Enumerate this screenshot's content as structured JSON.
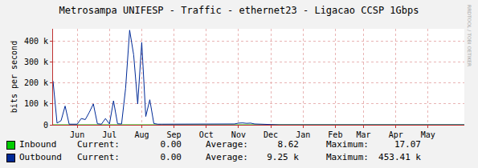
{
  "chart_data": {
    "type": "line",
    "title": "Metrosampa UNIFESP - Traffic - ethernet23 - Ligacao CCSP 1Gbps",
    "y_label": "bits per second",
    "watermark": "RRDTOOL / TOBI OETIKER",
    "categories": [
      null,
      null,
      null,
      null,
      null,
      null,
      "Jun",
      null,
      null,
      null,
      null,
      null,
      null,
      null,
      "Jul",
      null,
      null,
      null,
      null,
      null,
      null,
      null,
      "Aug",
      null,
      null,
      null,
      null,
      null,
      null,
      null,
      "Sep",
      null,
      null,
      null,
      null,
      null,
      null,
      null,
      "Oct",
      null,
      null,
      null,
      null,
      null,
      null,
      null,
      "Nov",
      null,
      null,
      null,
      null,
      null,
      null,
      null,
      "Dec",
      null,
      null,
      null,
      null,
      null,
      null,
      null,
      "Jan",
      null,
      null,
      null,
      null,
      null,
      null,
      null,
      "Feb",
      null,
      null,
      null,
      null,
      null,
      null,
      "Mar",
      null,
      null,
      null,
      null,
      null,
      null,
      null,
      "Apr",
      null,
      null,
      null,
      null,
      null,
      null,
      null,
      "May",
      null,
      null,
      null,
      null,
      null,
      null,
      null,
      null,
      null
    ],
    "series": [
      {
        "name": "Inbound",
        "type": "area",
        "color": "#00cc00",
        "stats": [
          {
            "label": "Current:",
            "text": "0.00"
          },
          {
            "label": "Average:",
            "text": "8.62"
          },
          {
            "label": "Maximum:",
            "text": "17.07"
          }
        ],
        "values": [
          17.07,
          9,
          8,
          10,
          7,
          8,
          9,
          10,
          11,
          9,
          12,
          8,
          9,
          10,
          11,
          9,
          12,
          10,
          13,
          15,
          14,
          11,
          13,
          10,
          12,
          9,
          8,
          8,
          7,
          8,
          8,
          7,
          8,
          9,
          8,
          7,
          8,
          8,
          9,
          8,
          7,
          8,
          8,
          9,
          8,
          9,
          10,
          11,
          9,
          8,
          8,
          7,
          6,
          5,
          0,
          0,
          0,
          0,
          0,
          0,
          0,
          0,
          0,
          0,
          0,
          0,
          0,
          0,
          0,
          0,
          0,
          0,
          0,
          0,
          0,
          0,
          0,
          0,
          0,
          0,
          0,
          0,
          0,
          0,
          0,
          0,
          0,
          0,
          0,
          0,
          0,
          0,
          0,
          0,
          0,
          0,
          0,
          0,
          0,
          0,
          0,
          0,
          0
        ]
      },
      {
        "name": "Outbound",
        "type": "line",
        "color": "#002a97",
        "stats": [
          {
            "label": "Current:",
            "text": "0.00"
          },
          {
            "label": "Average:",
            "text": "9.25 k"
          },
          {
            "label": "Maximum:",
            "text": "453.41 k"
          }
        ],
        "values": [
          210000,
          8000,
          20000,
          90000,
          3000,
          2000,
          3000,
          30000,
          25000,
          60000,
          100000,
          5000,
          3000,
          30000,
          4000,
          115000,
          5000,
          4000,
          175000,
          453410,
          335000,
          100000,
          395000,
          40000,
          120000,
          6000,
          3000,
          3000,
          3000,
          3000,
          3000,
          3000,
          3000,
          3000,
          3000,
          3000,
          3000,
          3000,
          3000,
          3000,
          3000,
          3000,
          3000,
          3000,
          3000,
          4000,
          8000,
          9000,
          7000,
          8000,
          4000,
          3000,
          2000,
          1000,
          0,
          0,
          0,
          0,
          0,
          0,
          0,
          0,
          0,
          0,
          0,
          0,
          0,
          0,
          0,
          0,
          0,
          0,
          0,
          0,
          0,
          0,
          0,
          0,
          0,
          0,
          0,
          0,
          0,
          0,
          0,
          0,
          0,
          0,
          0,
          0,
          0,
          0,
          0,
          0,
          0,
          0,
          0,
          0,
          0,
          0,
          0,
          0,
          0
        ]
      }
    ],
    "ylim": [
      0,
      460000
    ],
    "yticks": [
      0,
      {
        "value": 100000,
        "label": "100 k"
      },
      {
        "value": 200000,
        "label": "200 k"
      },
      {
        "value": 300000,
        "label": "300 k"
      },
      {
        "value": 400000,
        "label": "400 k"
      }
    ],
    "grid": true,
    "legend": "bottom"
  }
}
